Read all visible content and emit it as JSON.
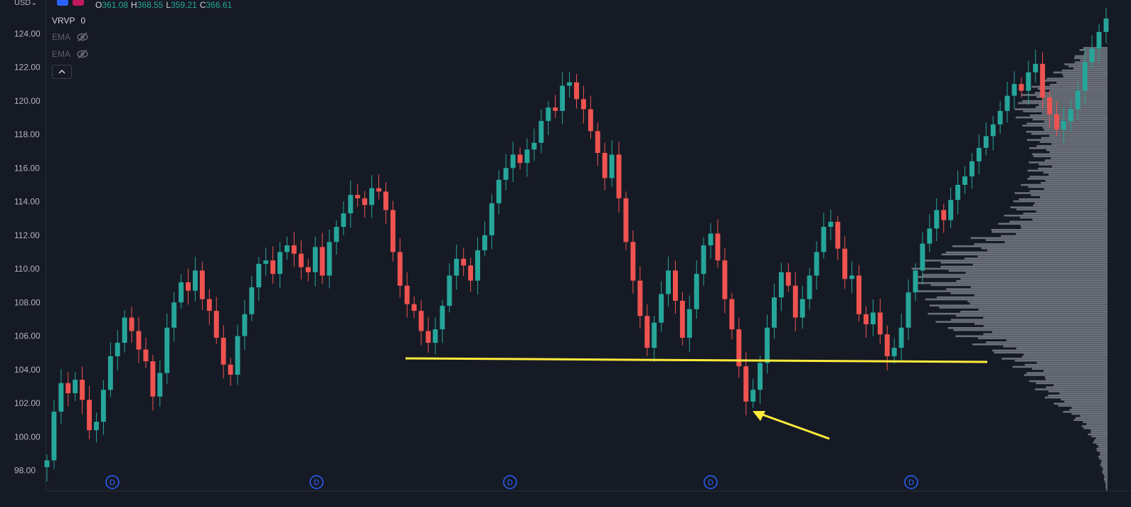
{
  "header": {
    "currency": "USD",
    "ohlc": [
      {
        "label": "O",
        "value": "361.08"
      },
      {
        "label": "H",
        "value": "368.55"
      },
      {
        "label": "L",
        "value": "359.21"
      },
      {
        "label": "C",
        "value": "366.61"
      }
    ]
  },
  "indicators": {
    "vrvp": {
      "name": "VRVP",
      "value": "0"
    },
    "ema1": {
      "name": "EMA"
    },
    "ema2": {
      "name": "EMA"
    },
    "collapse_icon": "chevron-up-icon"
  },
  "colors": {
    "background": "#161a25",
    "up": "#26a69a",
    "down": "#ef5350",
    "volume_profile": "#8a8d96",
    "annotation": "#ffeb3b",
    "dividend_marker": "#2962ff"
  },
  "chart_data": {
    "type": "candlestick",
    "y_ticks": [
      "98.00",
      "100.00",
      "102.00",
      "104.00",
      "106.00",
      "108.00",
      "110.00",
      "112.00",
      "114.00",
      "116.00",
      "118.00",
      "120.00",
      "122.00",
      "124.00"
    ],
    "ylim": [
      96.8,
      126.0
    ],
    "dividend_marker_label": "D",
    "dividend_marker_count": 5,
    "support_line_price": 104.5,
    "closes": [
      98.6,
      101.5,
      103.2,
      102.6,
      103.4,
      102.2,
      100.4,
      100.9,
      102.8,
      104.8,
      105.6,
      107.1,
      106.3,
      105.2,
      104.5,
      102.4,
      103.8,
      106.5,
      108.0,
      109.2,
      108.7,
      109.9,
      108.2,
      107.5,
      105.9,
      104.3,
      103.7,
      106.0,
      107.3,
      108.9,
      110.3,
      110.5,
      109.7,
      111.0,
      111.4,
      110.9,
      110.1,
      109.8,
      111.3,
      109.6,
      111.6,
      112.5,
      113.3,
      114.4,
      114.2,
      113.8,
      114.8,
      114.6,
      113.5,
      111.0,
      109.0,
      107.9,
      107.5,
      106.3,
      105.6,
      106.4,
      107.8,
      109.6,
      110.6,
      110.2,
      109.3,
      111.1,
      112.0,
      113.9,
      115.3,
      116.0,
      116.8,
      116.3,
      117.1,
      117.5,
      118.8,
      119.6,
      119.4,
      120.9,
      121.1,
      120.1,
      119.5,
      118.2,
      116.9,
      115.4,
      116.8,
      114.2,
      111.6,
      109.3,
      107.2,
      105.3,
      106.8,
      108.5,
      109.9,
      108.1,
      105.9,
      107.6,
      109.7,
      111.4,
      112.1,
      110.5,
      108.2,
      106.4,
      104.2,
      102.1,
      102.8,
      104.4,
      106.5,
      108.3,
      109.8,
      109.0,
      107.1,
      108.2,
      109.6,
      111.0,
      112.5,
      112.8,
      111.2,
      109.4,
      109.6,
      107.3,
      106.7,
      107.4,
      106.1,
      104.8,
      105.3,
      106.5,
      108.6,
      109.9,
      111.5,
      112.4,
      113.5,
      112.9,
      114.1,
      115.0,
      115.5,
      116.4,
      117.2,
      117.9,
      118.6,
      119.4,
      120.3,
      121.0,
      120.6,
      121.7,
      122.2,
      120.2,
      119.2,
      118.3,
      118.8,
      119.5,
      120.6,
      122.3,
      123.1,
      124.1,
      124.9
    ]
  }
}
